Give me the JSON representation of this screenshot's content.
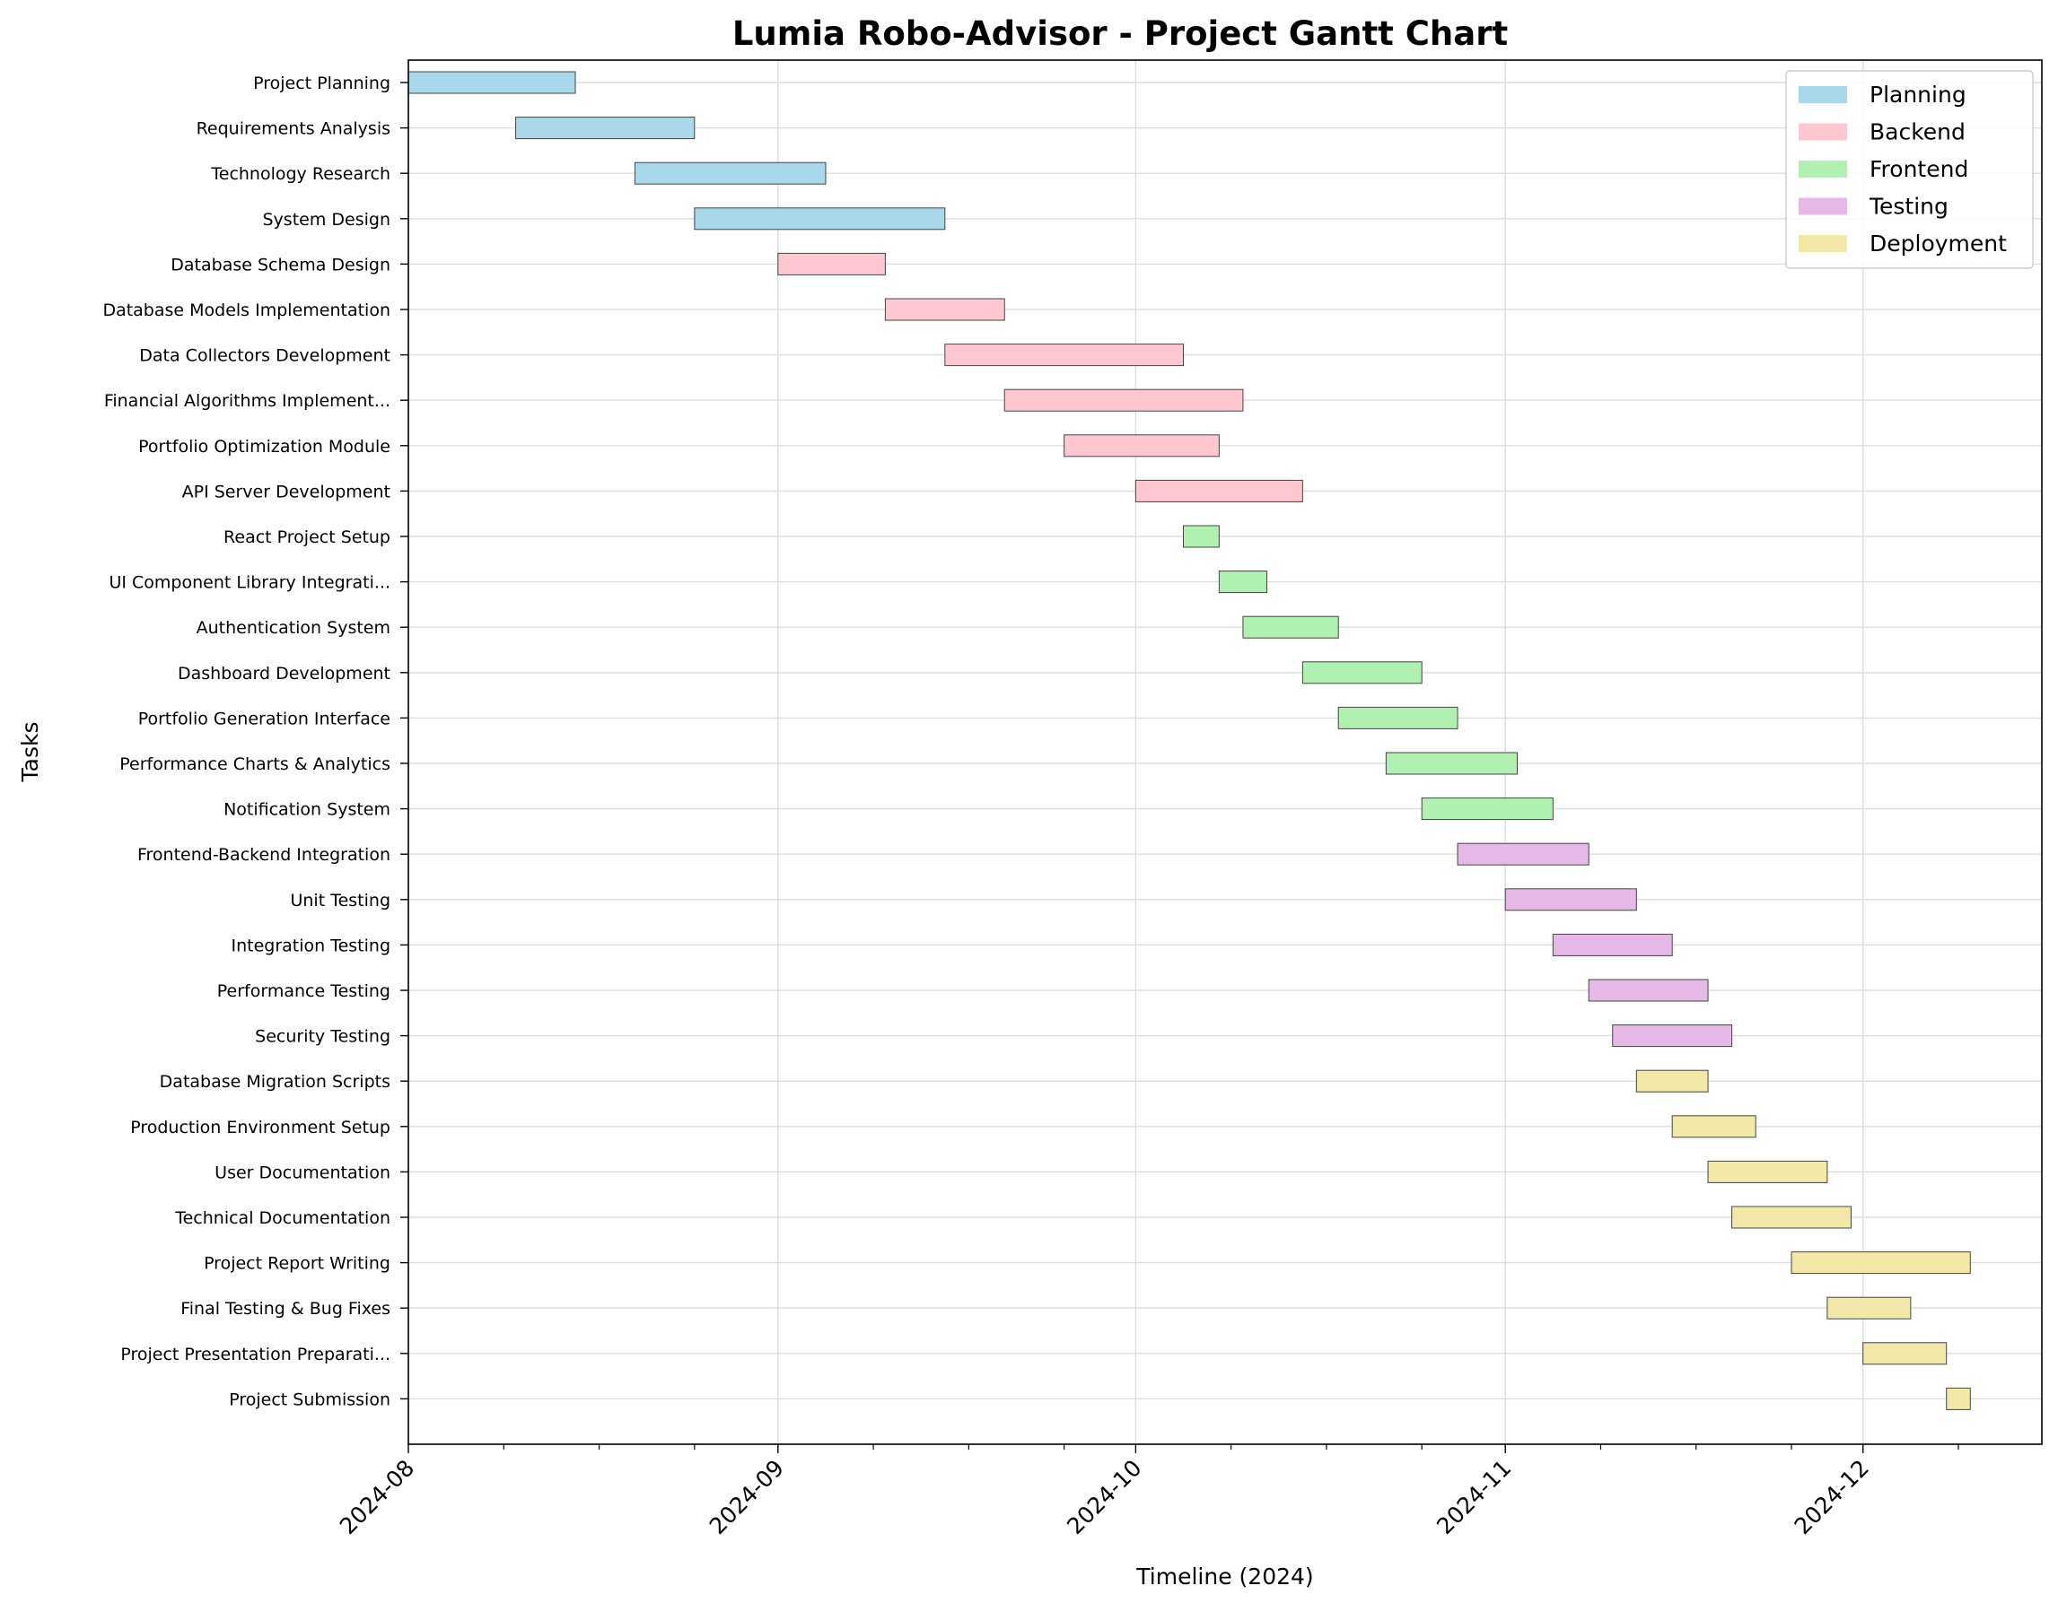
{
  "chart_data": {
    "type": "gantt",
    "title": "Lumia Robo-Advisor - Project Gantt Chart",
    "xlabel": "Timeline (2024)",
    "ylabel": "Tasks",
    "x_range": [
      "2024-08-01",
      "2024-12-16"
    ],
    "x_ticks": [
      "2024-08",
      "2024-09",
      "2024-10",
      "2024-11",
      "2024-12"
    ],
    "grid": true,
    "legend_position": "top-right",
    "categories": [
      {
        "name": "Planning",
        "color": "#a8d8ea"
      },
      {
        "name": "Backend",
        "color": "#ffc8d1"
      },
      {
        "name": "Frontend",
        "color": "#b0f0b0"
      },
      {
        "name": "Testing",
        "color": "#e6b8e8"
      },
      {
        "name": "Deployment",
        "color": "#f2e8a8"
      }
    ],
    "tasks": [
      {
        "name": "Project Planning",
        "category": "Planning",
        "start": "2024-08-01",
        "end": "2024-08-15"
      },
      {
        "name": "Requirements Analysis",
        "category": "Planning",
        "start": "2024-08-10",
        "end": "2024-08-25"
      },
      {
        "name": "Technology Research",
        "category": "Planning",
        "start": "2024-08-20",
        "end": "2024-09-05"
      },
      {
        "name": "System Design",
        "category": "Planning",
        "start": "2024-08-25",
        "end": "2024-09-15"
      },
      {
        "name": "Database Schema Design",
        "category": "Backend",
        "start": "2024-09-01",
        "end": "2024-09-10"
      },
      {
        "name": "Database Models Implementation",
        "category": "Backend",
        "start": "2024-09-10",
        "end": "2024-09-20"
      },
      {
        "name": "Data Collectors Development",
        "category": "Backend",
        "start": "2024-09-15",
        "end": "2024-10-05"
      },
      {
        "name": "Financial Algorithms Implement...",
        "category": "Backend",
        "start": "2024-09-20",
        "end": "2024-10-10"
      },
      {
        "name": "Portfolio Optimization Module",
        "category": "Backend",
        "start": "2024-09-25",
        "end": "2024-10-08"
      },
      {
        "name": "API Server Development",
        "category": "Backend",
        "start": "2024-10-01",
        "end": "2024-10-15"
      },
      {
        "name": "React Project Setup",
        "category": "Frontend",
        "start": "2024-10-05",
        "end": "2024-10-08"
      },
      {
        "name": "UI Component Library Integrati...",
        "category": "Frontend",
        "start": "2024-10-08",
        "end": "2024-10-12"
      },
      {
        "name": "Authentication System",
        "category": "Frontend",
        "start": "2024-10-10",
        "end": "2024-10-18"
      },
      {
        "name": "Dashboard Development",
        "category": "Frontend",
        "start": "2024-10-15",
        "end": "2024-10-25"
      },
      {
        "name": "Portfolio Generation Interface",
        "category": "Frontend",
        "start": "2024-10-18",
        "end": "2024-10-28"
      },
      {
        "name": "Performance Charts & Analytics",
        "category": "Frontend",
        "start": "2024-10-22",
        "end": "2024-11-02"
      },
      {
        "name": "Notification System",
        "category": "Frontend",
        "start": "2024-10-25",
        "end": "2024-11-05"
      },
      {
        "name": "Frontend-Backend Integration",
        "category": "Testing",
        "start": "2024-10-28",
        "end": "2024-11-08"
      },
      {
        "name": "Unit Testing",
        "category": "Testing",
        "start": "2024-11-01",
        "end": "2024-11-12"
      },
      {
        "name": "Integration Testing",
        "category": "Testing",
        "start": "2024-11-05",
        "end": "2024-11-15"
      },
      {
        "name": "Performance Testing",
        "category": "Testing",
        "start": "2024-11-08",
        "end": "2024-11-18"
      },
      {
        "name": "Security Testing",
        "category": "Testing",
        "start": "2024-11-10",
        "end": "2024-11-20"
      },
      {
        "name": "Database Migration Scripts",
        "category": "Deployment",
        "start": "2024-11-12",
        "end": "2024-11-18"
      },
      {
        "name": "Production Environment Setup",
        "category": "Deployment",
        "start": "2024-11-15",
        "end": "2024-11-22"
      },
      {
        "name": "User Documentation",
        "category": "Deployment",
        "start": "2024-11-18",
        "end": "2024-11-28"
      },
      {
        "name": "Technical Documentation",
        "category": "Deployment",
        "start": "2024-11-20",
        "end": "2024-11-30"
      },
      {
        "name": "Project Report Writing",
        "category": "Deployment",
        "start": "2024-11-25",
        "end": "2024-12-10"
      },
      {
        "name": "Final Testing & Bug Fixes",
        "category": "Deployment",
        "start": "2024-11-28",
        "end": "2024-12-05"
      },
      {
        "name": "Project Presentation Preparati...",
        "category": "Deployment",
        "start": "2024-12-01",
        "end": "2024-12-08"
      },
      {
        "name": "Project Submission",
        "category": "Deployment",
        "start": "2024-12-08",
        "end": "2024-12-10"
      }
    ]
  }
}
